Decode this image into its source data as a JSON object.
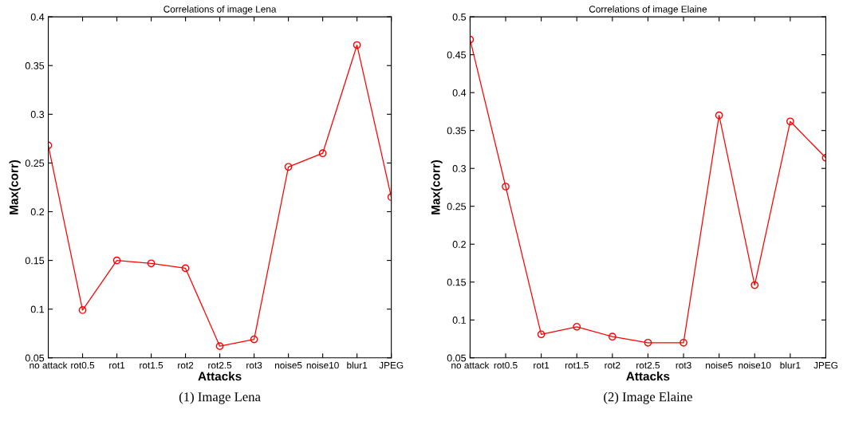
{
  "chart_data": [
    {
      "type": "line",
      "title": "Correlations of image Lena",
      "xlabel": "Attacks",
      "ylabel": "Max(corr)",
      "categories": [
        "no attack",
        "rot0.5",
        "rot1",
        "rot1.5",
        "rot2",
        "rot2.5",
        "rot3",
        "noise5",
        "noise10",
        "blur1",
        "JPEG"
      ],
      "series": [
        {
          "color": "#ff0000",
          "values": [
            0.268,
            0.099,
            0.15,
            0.147,
            0.142,
            0.062,
            0.069,
            0.246,
            0.26,
            0.371,
            0.215
          ]
        }
      ],
      "ylim": [
        0.05,
        0.4
      ],
      "yticks": [
        0.05,
        0.1,
        0.15,
        0.2,
        0.25,
        0.3,
        0.35,
        0.4
      ],
      "marker": "circle",
      "line_style": "solid",
      "grid": false,
      "legend": false,
      "annotations": [
        "(1) Image Lena"
      ]
    },
    {
      "type": "line",
      "title": "Correlations of image Elaine",
      "xlabel": "Attacks",
      "ylabel": "Max(corr)",
      "categories": [
        "no attack",
        "rot0.5",
        "rot1",
        "rot1.5",
        "rot2",
        "rot2.5",
        "rot3",
        "noise5",
        "noise10",
        "blur1",
        "JPEG"
      ],
      "series": [
        {
          "color": "#ff0000",
          "values": [
            0.47,
            0.276,
            0.081,
            0.091,
            0.078,
            0.07,
            0.07,
            0.37,
            0.146,
            0.362,
            0.314
          ]
        }
      ],
      "ylim": [
        0.05,
        0.5
      ],
      "yticks": [
        0.05,
        0.1,
        0.15,
        0.2,
        0.25,
        0.3,
        0.35,
        0.4,
        0.45,
        0.5
      ],
      "marker": "circle",
      "line_style": "solid",
      "grid": false,
      "legend": false,
      "annotations": [
        "(2) Image Elaine"
      ]
    }
  ]
}
